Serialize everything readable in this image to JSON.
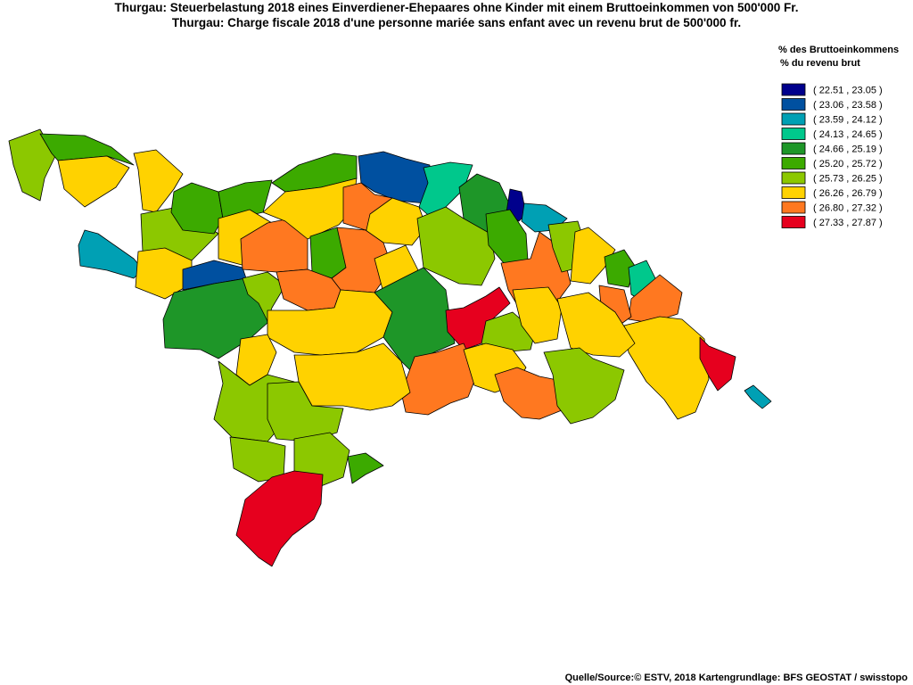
{
  "title_de": "Thurgau: Steuerbelastung 2018 eines Einverdiener-Ehepaares ohne Kinder mit einem Bruttoeinkommen von 500'000 Fr.",
  "title_fr": "Thurgau: Charge fiscale 2018 d'une personne mariée sans enfant avec un revenu brut de 500'000 fr.",
  "legend": {
    "title_de": "% des Bruttoeinkommens",
    "title_fr": "% du revenu brut",
    "classes": [
      {
        "label": "( 22.51 , 23.05 )",
        "color": "#00008c"
      },
      {
        "label": "( 23.06 , 23.58 )",
        "color": "#0050a0"
      },
      {
        "label": "( 23.59 , 24.12 )",
        "color": "#00a0b4"
      },
      {
        "label": "( 24.13 , 24.65 )",
        "color": "#00c88c"
      },
      {
        "label": "( 24.66 , 25.19 )",
        "color": "#1e9628"
      },
      {
        "label": "( 25.20 , 25.72 )",
        "color": "#3caa00"
      },
      {
        "label": "( 25.73 , 26.25 )",
        "color": "#8cc800"
      },
      {
        "label": "( 26.26 , 26.79 )",
        "color": "#ffd200"
      },
      {
        "label": "( 26.80 , 27.32 )",
        "color": "#ff7820"
      },
      {
        "label": "( 27.33 , 27.87 )",
        "color": "#e6001e"
      }
    ]
  },
  "source": "Quelle/Source:© ESTV, 2018 Kartengrundlage: BFS GEOSTAT / swisstopo"
}
